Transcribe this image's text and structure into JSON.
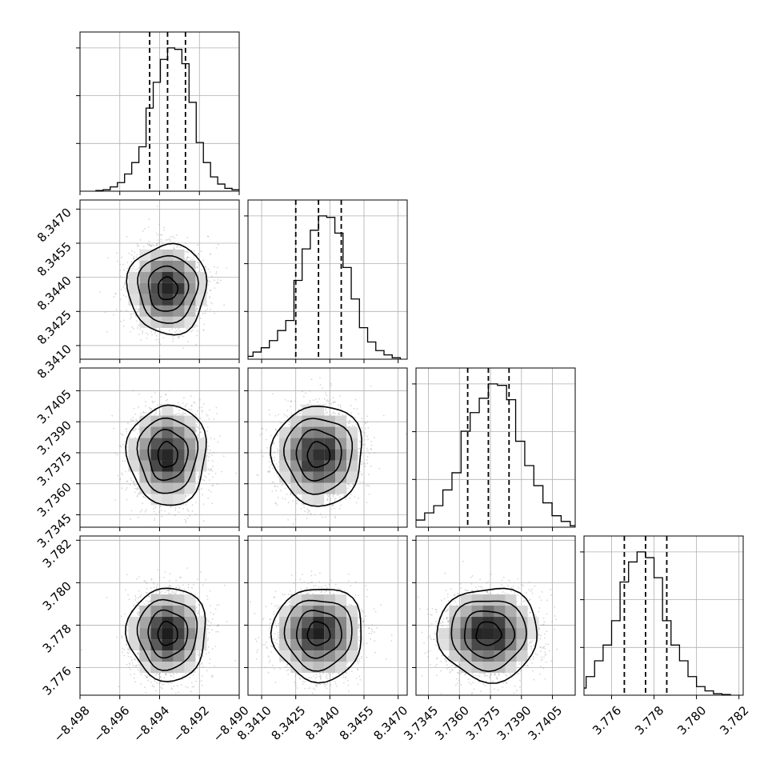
{
  "chart_data": {
    "type": "corner",
    "title": "",
    "grid": true,
    "params": [
      {
        "name": "",
        "range": [
          -8.498,
          -8.49
        ],
        "ticks": [
          -8.498,
          -8.496,
          -8.494,
          -8.492,
          -8.49
        ],
        "tick_labels": [
          "−8.498",
          "−8.496",
          "−8.494",
          "−8.492",
          "−8.490"
        ],
        "mean": -8.4936,
        "sd": 0.0009,
        "quantiles": [
          -8.4945,
          -8.4936,
          -8.4927
        ],
        "hist": [
          0.005,
          0.01,
          0.03,
          0.06,
          0.12,
          0.2,
          0.31,
          0.58,
          0.76,
          0.92,
          1.0,
          0.99,
          0.89,
          0.62,
          0.34,
          0.2,
          0.1,
          0.05,
          0.02,
          0.01
        ]
      },
      {
        "name": "",
        "range": [
          8.3404,
          8.3474
        ],
        "ticks": [
          8.341,
          8.3425,
          8.344,
          8.3455,
          8.347
        ],
        "tick_labels": [
          "8.3410",
          "8.3425",
          "8.3440",
          "8.3455",
          "8.3470"
        ],
        "mean": 8.3435,
        "sd": 0.0009,
        "quantiles": [
          8.3425,
          8.3435,
          8.3445
        ],
        "hist": [
          0.005,
          0.02,
          0.05,
          0.08,
          0.13,
          0.2,
          0.27,
          0.55,
          0.77,
          0.9,
          1.0,
          0.99,
          0.88,
          0.64,
          0.42,
          0.22,
          0.12,
          0.06,
          0.03,
          0.01
        ]
      },
      {
        "name": "",
        "range": [
          3.7339,
          3.7416
        ],
        "ticks": [
          3.7345,
          3.736,
          3.7375,
          3.739,
          3.7405
        ],
        "tick_labels": [
          "3.7345",
          "3.7360",
          "3.7375",
          "3.7390",
          "3.7405"
        ],
        "mean": 3.7374,
        "sd": 0.0011,
        "quantiles": [
          3.7364,
          3.7374,
          3.7384
        ],
        "hist": [
          0.005,
          0.02,
          0.05,
          0.1,
          0.15,
          0.26,
          0.38,
          0.67,
          0.8,
          0.9,
          1.0,
          0.99,
          0.89,
          0.6,
          0.43,
          0.29,
          0.17,
          0.08,
          0.04,
          0.01
        ]
      },
      {
        "name": "",
        "range": [
          3.7747,
          3.7822
        ],
        "ticks": [
          3.776,
          3.778,
          3.78,
          3.782
        ],
        "tick_labels": [
          "3.776",
          "3.778",
          "3.780",
          "3.782"
        ],
        "mean": 3.7776,
        "sd": 0.001,
        "quantiles": [
          3.7766,
          3.7776,
          3.7786
        ],
        "hist": [
          0.005,
          0.02,
          0.05,
          0.13,
          0.24,
          0.35,
          0.52,
          0.79,
          0.93,
          1.0,
          0.96,
          0.82,
          0.52,
          0.35,
          0.24,
          0.13,
          0.06,
          0.03,
          0.01,
          0.005
        ]
      }
    ],
    "contour_levels_sigma": [
      0.5,
      1.0,
      1.5,
      2.0
    ],
    "scatter_color": "#9a9a9a",
    "line_color": "#000000",
    "grid_color": "#b0b0b0"
  }
}
